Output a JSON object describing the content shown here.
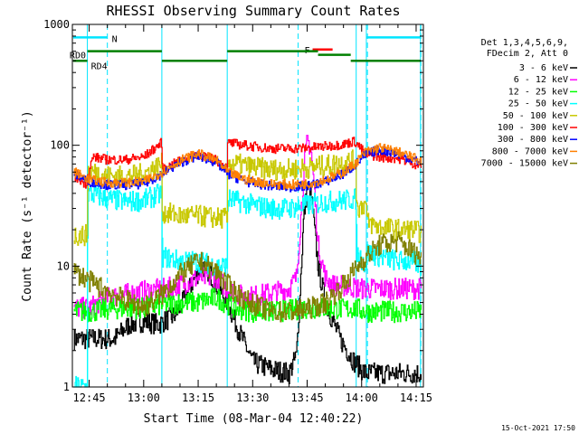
{
  "chart_data": {
    "type": "line",
    "title": "RHESSI Observing Summary Count Rates",
    "xlabel": "Start Time (08-Mar-04 12:40:22)",
    "ylabel": "Count Rate (s⁻¹ detector⁻¹)",
    "yscale": "log",
    "xlim_minutes": [
      40.37,
      137.0
    ],
    "ylim": [
      1,
      1000
    ],
    "x_ticks": [
      {
        "label": "12:45",
        "minute": 45
      },
      {
        "label": "13:00",
        "minute": 60
      },
      {
        "label": "13:15",
        "minute": 75
      },
      {
        "label": "13:30",
        "minute": 90
      },
      {
        "label": "13:45",
        "minute": 105
      },
      {
        "label": "14:00",
        "minute": 120
      },
      {
        "label": "14:15",
        "minute": 135
      }
    ],
    "y_ticks": [
      {
        "label": "1",
        "value": 1
      },
      {
        "label": "10",
        "value": 10
      },
      {
        "label": "100",
        "value": 100
      },
      {
        "label": "1000",
        "value": 1000
      }
    ],
    "legend": {
      "placement": "right",
      "header": [
        "Det 1,3,4,5,6,9,",
        "FDecim 2, Att 0"
      ]
    },
    "footer_timestamp": "15-Oct-2021 17:50",
    "annotations": {
      "night": {
        "label": "N",
        "color": "#00e5ff",
        "intervals": [
          [
            40.6,
            50.0
          ],
          [
            121.3,
            136.2
          ]
        ],
        "y": 780
      },
      "flare": {
        "label": "F",
        "color": "#ff0000",
        "intervals": [
          [
            106.5,
            112.0
          ]
        ],
        "y": 620
      },
      "rd": {
        "color": "#008000",
        "labels": [
          {
            "text": "RD0",
            "minute": 40.6,
            "y": 560
          },
          {
            "text": "RD4",
            "minute": 46.5,
            "y": 455
          }
        ],
        "segments": [
          {
            "x0": 40.6,
            "x1": 44.5,
            "y": 500
          },
          {
            "x0": 44.5,
            "x1": 65.0,
            "y": 600
          },
          {
            "x0": 65.0,
            "x1": 83.0,
            "y": 500
          },
          {
            "x0": 83.0,
            "x1": 108.0,
            "y": 600
          },
          {
            "x0": 108.0,
            "x1": 117.0,
            "y": 560
          },
          {
            "x0": 117.0,
            "x1": 136.3,
            "y": 500
          }
        ]
      },
      "vertical_lines_solid": [
        44.5,
        65.0,
        83.0,
        118.5,
        121.3,
        136.2
      ],
      "vertical_lines_dashed": [
        50.0,
        102.5,
        121.6,
        136.3
      ]
    },
    "series": [
      {
        "name": "3 - 6 keV",
        "color": "#000000",
        "x": [
          45,
          52,
          56,
          60,
          64,
          68,
          70,
          72,
          74,
          76,
          78,
          80,
          83,
          86,
          90,
          95,
          100,
          102,
          103,
          104,
          105,
          106,
          107,
          108,
          110,
          114,
          118,
          121
        ],
        "y": [
          2.5,
          2.5,
          3.3,
          3.5,
          3.3,
          3.8,
          4.5,
          6,
          8,
          10,
          9,
          7,
          5,
          3,
          1.6,
          1.4,
          1.3,
          1.8,
          6,
          25,
          45,
          40,
          20,
          10,
          5,
          2.5,
          1.6,
          1.3
        ]
      },
      {
        "name": "6 - 12 keV",
        "color": "#ff00ff",
        "x": [
          45,
          50,
          60,
          66,
          70,
          75,
          80,
          83,
          88,
          95,
          100,
          102,
          103,
          104,
          105,
          106,
          107,
          108,
          110,
          112,
          116,
          120
        ],
        "y": [
          4.5,
          5.5,
          6.2,
          6.5,
          7,
          8,
          8,
          6.5,
          5.5,
          6,
          6.5,
          8,
          20,
          60,
          110,
          95,
          40,
          15,
          8,
          7,
          6.8,
          6.5
        ]
      },
      {
        "name": "12 - 25 keV",
        "color": "#00ff00",
        "x": [
          45,
          50,
          55,
          60,
          65,
          70,
          75,
          80,
          85,
          90,
          95,
          100,
          105,
          110,
          115,
          118,
          121
        ],
        "y": [
          4.2,
          4.4,
          4.5,
          4.5,
          4.8,
          5,
          5,
          5.5,
          4.5,
          4.2,
          4.2,
          4.3,
          4.5,
          4.5,
          4.4,
          4.5,
          4.2
        ]
      },
      {
        "name": "25 - 50 keV",
        "color": "#00ffff",
        "x": [
          41,
          44.4,
          44.6,
          50,
          55,
          60,
          64.9,
          65.1,
          70,
          75,
          80,
          82.9,
          83.1,
          90,
          95,
          100,
          105,
          110,
          115,
          118.4,
          118.6,
          121.2,
          121.4,
          125,
          130,
          134,
          136
        ],
        "y": [
          1,
          1,
          40,
          36,
          34,
          35,
          40,
          12,
          11,
          11,
          10,
          10,
          36,
          32,
          30,
          30,
          32,
          34,
          35,
          36,
          13,
          10,
          13,
          12,
          11,
          11,
          10
        ]
      },
      {
        "name": "50 - 100 keV",
        "color": "#c8c800",
        "x": [
          41,
          44.4,
          44.6,
          50,
          55,
          60,
          64.9,
          65.1,
          70,
          75,
          80,
          82.9,
          83.1,
          90,
          95,
          100,
          105,
          110,
          115,
          118.4,
          118.6,
          121.2,
          121.4,
          125,
          130,
          134,
          136
        ],
        "y": [
          18,
          18,
          62,
          56,
          55,
          58,
          70,
          28,
          26,
          26,
          25,
          25,
          72,
          66,
          63,
          63,
          65,
          68,
          72,
          75,
          30,
          33,
          23,
          21,
          20,
          20,
          19
        ]
      },
      {
        "name": "100 - 300 keV",
        "color": "#ff0000",
        "x": [
          41,
          44,
          46,
          50,
          55,
          60,
          64.9,
          65.1,
          70,
          75,
          80,
          82.9,
          83.1,
          90,
          95,
          100,
          105,
          110,
          115,
          118,
          121,
          125,
          130,
          136
        ],
        "y": [
          55,
          48,
          80,
          76,
          76,
          80,
          105,
          62,
          75,
          85,
          75,
          65,
          105,
          98,
          94,
          94,
          95,
          98,
          102,
          108,
          85,
          80,
          78,
          68
        ]
      },
      {
        "name": "300 - 800 keV",
        "color": "#0000ff",
        "x": [
          41,
          45,
          50,
          55,
          60,
          65,
          70,
          75,
          80,
          83,
          88,
          95,
          100,
          105,
          110,
          115,
          118,
          121,
          125,
          130,
          136
        ],
        "y": [
          58,
          50,
          47,
          47,
          48,
          58,
          72,
          82,
          72,
          58,
          50,
          46,
          45,
          46,
          50,
          58,
          68,
          84,
          92,
          85,
          72
        ]
      },
      {
        "name": "800 - 7000 keV",
        "color": "#ff8000",
        "x": [
          41,
          45,
          50,
          55,
          60,
          65,
          70,
          75,
          80,
          83,
          88,
          95,
          100,
          105,
          110,
          115,
          118,
          121,
          125,
          130,
          136
        ],
        "y": [
          60,
          52,
          49,
          49,
          50,
          60,
          75,
          85,
          75,
          60,
          52,
          48,
          47,
          48,
          52,
          60,
          70,
          88,
          96,
          88,
          75
        ]
      },
      {
        "name": "7000 - 15000 keV",
        "color": "#808000",
        "x": [
          41,
          45,
          50,
          55,
          60,
          65,
          70,
          75,
          80,
          83,
          88,
          95,
          100,
          105,
          110,
          115,
          120,
          125,
          130,
          136
        ],
        "y": [
          9,
          7.5,
          6.2,
          5.2,
          4.6,
          5.8,
          8.5,
          11,
          9,
          7,
          5.2,
          4.2,
          4.2,
          4.4,
          5,
          7,
          11,
          15,
          16,
          12
        ]
      }
    ]
  }
}
